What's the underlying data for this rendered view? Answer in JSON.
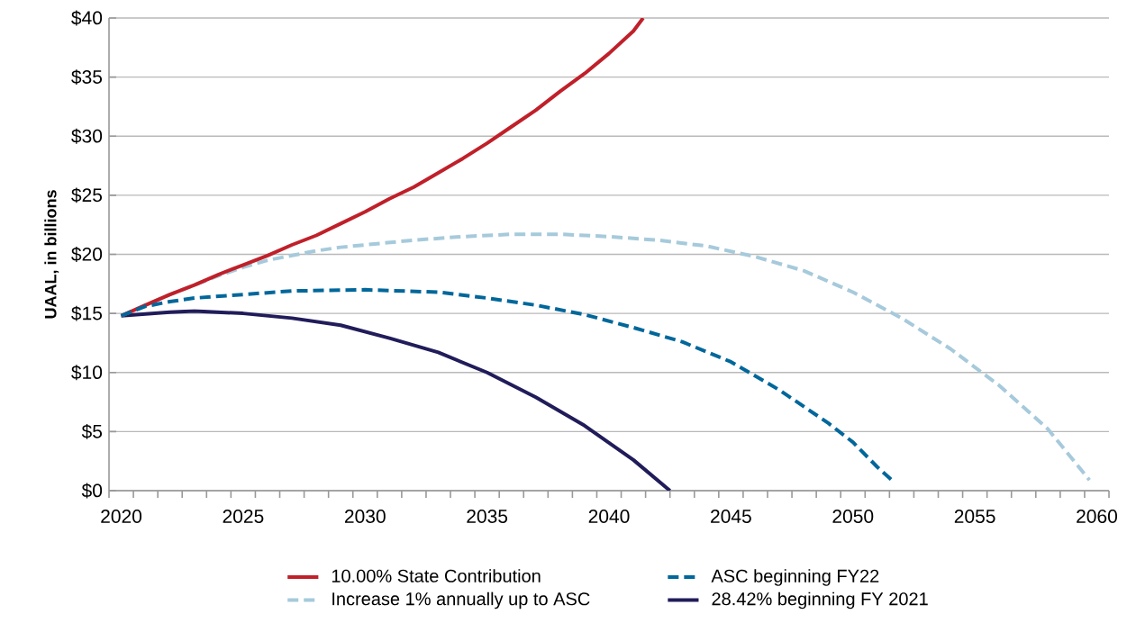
{
  "chart_data": {
    "type": "line",
    "ylabel": "UAAL, in billions",
    "grid": "y",
    "legend": "bottom",
    "xlim": [
      2019.5,
      2060.5
    ],
    "xticks": [
      2020,
      2025,
      2030,
      2035,
      2040,
      2045,
      2050,
      2055,
      2060,
      {
        "value": 2019.5,
        "label": null
      },
      {
        "value": 2020.5,
        "label": null
      },
      {
        "value": 2021.5,
        "label": null
      },
      {
        "value": 2022.5,
        "label": null
      },
      {
        "value": 2023.5,
        "label": null
      },
      {
        "value": 2024.5,
        "label": null
      },
      {
        "value": 2025.5,
        "label": null
      },
      {
        "value": 2026.5,
        "label": null
      },
      {
        "value": 2027.5,
        "label": null
      },
      {
        "value": 2028.5,
        "label": null
      },
      {
        "value": 2029.5,
        "label": null
      },
      {
        "value": 2030.5,
        "label": null
      },
      {
        "value": 2031.5,
        "label": null
      },
      {
        "value": 2032.5,
        "label": null
      },
      {
        "value": 2033.5,
        "label": null
      },
      {
        "value": 2034.5,
        "label": null
      },
      {
        "value": 2035.5,
        "label": null
      },
      {
        "value": 2036.5,
        "label": null
      },
      {
        "value": 2037.5,
        "label": null
      },
      {
        "value": 2038.5,
        "label": null
      },
      {
        "value": 2039.5,
        "label": null
      },
      {
        "value": 2040.5,
        "label": null
      },
      {
        "value": 2041.5,
        "label": null
      },
      {
        "value": 2042.5,
        "label": null
      },
      {
        "value": 2043.5,
        "label": null
      },
      {
        "value": 2044.5,
        "label": null
      },
      {
        "value": 2045.5,
        "label": null
      },
      {
        "value": 2046.5,
        "label": null
      },
      {
        "value": 2047.5,
        "label": null
      },
      {
        "value": 2048.5,
        "label": null
      },
      {
        "value": 2049.5,
        "label": null
      },
      {
        "value": 2050.5,
        "label": null
      },
      {
        "value": 2051.5,
        "label": null
      },
      {
        "value": 2052.5,
        "label": null
      },
      {
        "value": 2053.5,
        "label": null
      },
      {
        "value": 2054.5,
        "label": null
      },
      {
        "value": 2055.5,
        "label": null
      },
      {
        "value": 2056.5,
        "label": null
      },
      {
        "value": 2057.5,
        "label": null
      },
      {
        "value": 2058.5,
        "label": null
      },
      {
        "value": 2059.5,
        "label": null
      },
      {
        "value": 2060.5,
        "label": null
      }
    ],
    "ylim": [
      0,
      40
    ],
    "yticks": [
      {
        "value": 0,
        "label": "$0"
      },
      {
        "value": 5,
        "label": "$5"
      },
      {
        "value": 10,
        "label": "$10"
      },
      {
        "value": 15,
        "label": "$15"
      },
      {
        "value": 20,
        "label": "$20"
      },
      {
        "value": 25,
        "label": "$25"
      },
      {
        "value": 30,
        "label": "$30"
      },
      {
        "value": 35,
        "label": "$35"
      },
      {
        "value": 40,
        "label": "$40"
      }
    ],
    "series": [
      {
        "name": "10.00% State Contribution",
        "color": "#c0202a",
        "line_style": "solid",
        "x": [
          2020,
          2021,
          2022,
          2023,
          2024,
          2025,
          2026,
          2027,
          2028,
          2029,
          2030,
          2031,
          2032,
          2033,
          2034,
          2035,
          2036,
          2037,
          2038,
          2039,
          2040,
          2041,
          2041.4
        ],
        "values": [
          14.8,
          15.7,
          16.6,
          17.4,
          18.3,
          19.1,
          19.9,
          20.8,
          21.6,
          22.6,
          23.6,
          24.7,
          25.7,
          26.9,
          28.1,
          29.4,
          30.8,
          32.2,
          33.8,
          35.3,
          37.0,
          38.9,
          40
        ]
      },
      {
        "name": "ASC beginning FY22",
        "color": "#00679b",
        "line_style": "dashed",
        "x": [
          2020,
          2021,
          2022,
          2023,
          2025,
          2027,
          2030,
          2033,
          2035,
          2037,
          2039,
          2041,
          2043,
          2045,
          2047,
          2049,
          2050,
          2051,
          2051.7
        ],
        "values": [
          14.8,
          15.6,
          16.0,
          16.3,
          16.6,
          16.9,
          17.0,
          16.8,
          16.3,
          15.7,
          14.9,
          13.8,
          12.6,
          10.9,
          8.5,
          5.7,
          4.1,
          2.0,
          0.7
        ]
      },
      {
        "name": "Increase 1% annually up to ASC",
        "color": "#a6cadb",
        "line_style": "dashed",
        "x": [
          2020,
          2021,
          2022,
          2023,
          2024,
          2025,
          2026,
          2027,
          2028,
          2029,
          2030,
          2032,
          2034,
          2036,
          2038,
          2040,
          2042,
          2044,
          2046,
          2048,
          2050,
          2052,
          2054,
          2056,
          2058,
          2059.7
        ],
        "values": [
          14.8,
          15.7,
          16.6,
          17.4,
          18.2,
          18.9,
          19.5,
          19.9,
          20.3,
          20.6,
          20.8,
          21.2,
          21.5,
          21.7,
          21.7,
          21.5,
          21.2,
          20.7,
          19.8,
          18.6,
          16.8,
          14.6,
          12.0,
          8.9,
          5.2,
          0.9
        ]
      },
      {
        "name": "28.42% beginning FY 2021",
        "color": "#211c5a",
        "line_style": "solid",
        "x": [
          2020,
          2021,
          2022,
          2023,
          2025,
          2027,
          2029,
          2031,
          2033,
          2035,
          2037,
          2039,
          2041,
          2042.5
        ],
        "values": [
          14.8,
          14.95,
          15.1,
          15.2,
          15.0,
          14.6,
          14.0,
          12.9,
          11.7,
          10.0,
          7.9,
          5.5,
          2.6,
          0
        ]
      }
    ]
  }
}
